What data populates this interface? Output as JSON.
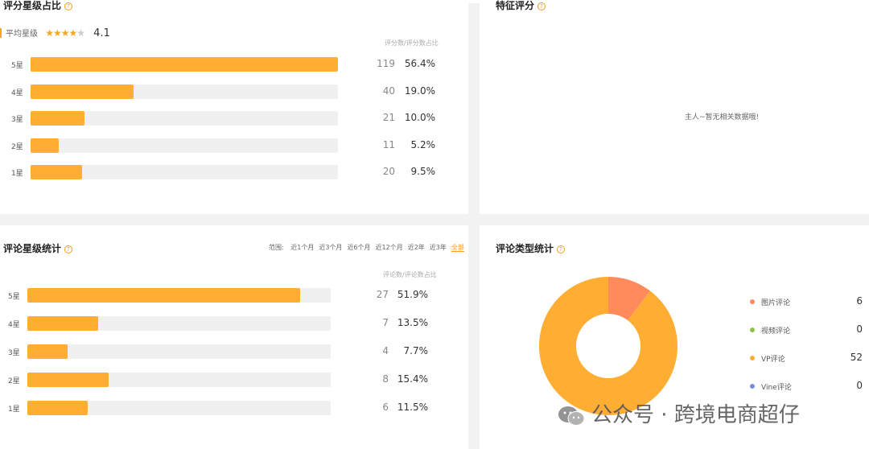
{
  "panels": {
    "top_left": {
      "title": "评分星级占比",
      "avg_label": "平均星级",
      "avg_stars": 4,
      "avg_value": "4.1",
      "col_header": "评分数/评分数占比",
      "rows": [
        {
          "label": "5星",
          "count": "119",
          "pct": "56.4%",
          "fill": 1.0
        },
        {
          "label": "4星",
          "count": "40",
          "pct": "19.0%",
          "fill": 0.336
        },
        {
          "label": "3星",
          "count": "21",
          "pct": "10.0%",
          "fill": 0.176
        },
        {
          "label": "2星",
          "count": "11",
          "pct": "5.2%",
          "fill": 0.092
        },
        {
          "label": "1星",
          "count": "20",
          "pct": "9.5%",
          "fill": 0.168
        }
      ]
    },
    "top_right": {
      "title": "特征评分",
      "empty_text": "主人~暂无相关数据哦!"
    },
    "bottom_left": {
      "title": "评论星级统计",
      "range_label": "范围:",
      "range_options": [
        "近1个月",
        "近3个月",
        "近6个月",
        "近12个月",
        "近2年",
        "近3年",
        "全部"
      ],
      "range_active": "全部",
      "col_header": "评论数/评论数占比",
      "rows": [
        {
          "label": "5星",
          "count": "27",
          "pct": "51.9%",
          "fill": 0.9
        },
        {
          "label": "4星",
          "count": "7",
          "pct": "13.5%",
          "fill": 0.233
        },
        {
          "label": "3星",
          "count": "4",
          "pct": "7.7%",
          "fill": 0.133
        },
        {
          "label": "2星",
          "count": "8",
          "pct": "15.4%",
          "fill": 0.267
        },
        {
          "label": "1星",
          "count": "6",
          "pct": "11.5%",
          "fill": 0.2
        }
      ]
    },
    "bottom_right": {
      "title": "评论类型统计",
      "legend": [
        {
          "name": "图片评论",
          "value": "6",
          "color": "#ff8a5c"
        },
        {
          "name": "视频评论",
          "value": "0",
          "color": "#8bc34a"
        },
        {
          "name": "VP评论",
          "value": "52",
          "color": "#ffae33"
        },
        {
          "name": "Vine评论",
          "value": "0",
          "color": "#7b8ce0"
        }
      ]
    }
  },
  "chart_data": {
    "type": "pie",
    "categories": [
      "图片评论",
      "视频评论",
      "VP评论",
      "Vine评论"
    ],
    "values": [
      6,
      0,
      52,
      0
    ],
    "colors": [
      "#ff8a5c",
      "#8bc34a",
      "#ffae33",
      "#7b8ce0"
    ]
  },
  "watermark": {
    "text": "公众号 · 跨境电商超仔",
    "icon": "wechat-icon"
  }
}
